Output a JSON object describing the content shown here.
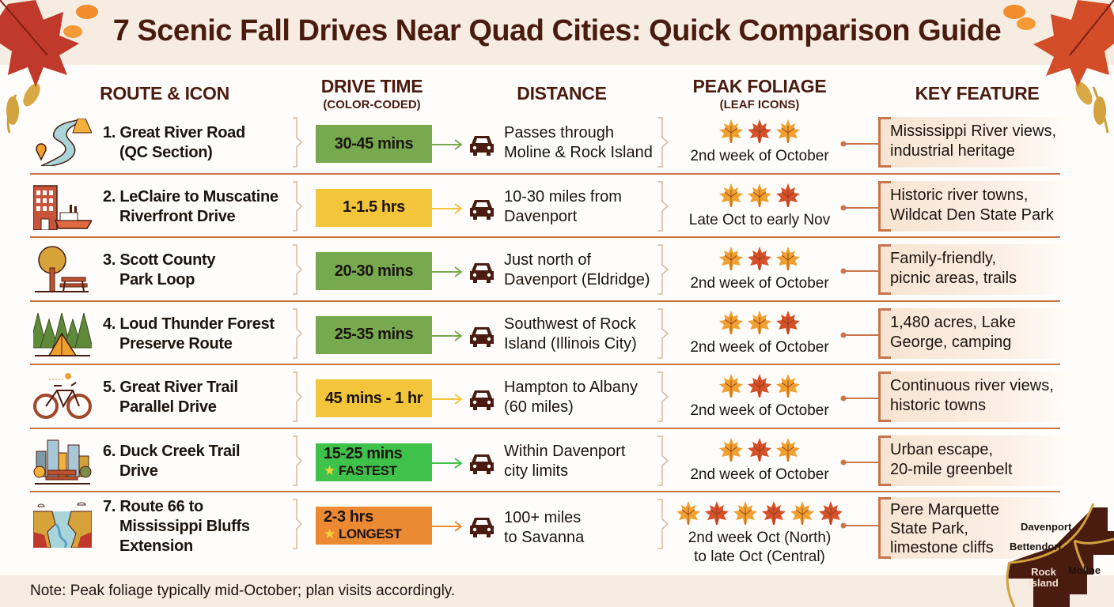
{
  "title": "7 Scenic Fall Drives Near Quad Cities: Quick Comparison Guide",
  "columns": {
    "route": {
      "main": "ROUTE & ICON",
      "sub": ""
    },
    "drive_time": {
      "main": "DRIVE TIME",
      "sub": "(COLOR-CODED)"
    },
    "distance": {
      "main": "DISTANCE",
      "sub": ""
    },
    "peak_foliage": {
      "main": "PEAK FOLIAGE",
      "sub": "(LEAF ICONS)"
    },
    "key_feature": {
      "main": "KEY FEATURE",
      "sub": ""
    }
  },
  "colors": {
    "title": "#4a1c10",
    "divider": "#c8754a",
    "band": "#f6ece2",
    "time_green": "#77a94f",
    "time_yellow": "#f2c53a",
    "time_bright_green": "#3fc24a",
    "time_orange": "#ec8a34",
    "car": "#4a1c10",
    "leaf_orange": "#f0a030",
    "leaf_red": "#d6502a"
  },
  "routes": [
    {
      "name": "1. Great River Road\n    (QC Section)",
      "icon": "winding-road-icon",
      "drive_time": "30-45 mins",
      "time_color": "#77a94f",
      "tag": "",
      "distance": "Passes through\nMoline & Rock Island",
      "leaves": [
        "orange",
        "red",
        "orange"
      ],
      "peak_foliage": "2nd week of October",
      "key_feature": "Mississippi River views,\nindustrial heritage"
    },
    {
      "name": "2. LeClaire to Muscatine\n    Riverfront Drive",
      "icon": "riverboat-town-icon",
      "drive_time": "1-1.5 hrs",
      "time_color": "#f2c53a",
      "tag": "",
      "distance": "10-30 miles from\nDavenport",
      "leaves": [
        "orange",
        "orange",
        "red"
      ],
      "peak_foliage": "Late Oct to early Nov",
      "key_feature": "Historic river towns,\nWildcat Den State Park"
    },
    {
      "name": "3. Scott County\n    Park Loop",
      "icon": "tree-picnic-icon",
      "drive_time": "20-30 mins",
      "time_color": "#77a94f",
      "tag": "",
      "distance": "Just north of\nDavenport (Eldridge)",
      "leaves": [
        "orange",
        "red",
        "orange"
      ],
      "peak_foliage": "2nd week of October",
      "key_feature": "Family-friendly,\npicnic areas, trails"
    },
    {
      "name": "4. Loud Thunder Forest\n    Preserve Route",
      "icon": "forest-tent-icon",
      "drive_time": "25-35 mins",
      "time_color": "#77a94f",
      "tag": "",
      "distance": "Southwest of Rock\nIsland (Illinois City)",
      "leaves": [
        "orange",
        "orange",
        "red"
      ],
      "peak_foliage": "2nd week of October",
      "key_feature": "1,480 acres, Lake\nGeorge, camping"
    },
    {
      "name": "5. Great River Trail\n    Parallel Drive",
      "icon": "bicycle-icon",
      "drive_time": "45 mins - 1 hr",
      "time_color": "#f2c53a",
      "tag": "",
      "distance": "Hampton to Albany\n(60 miles)",
      "leaves": [
        "orange",
        "red",
        "orange"
      ],
      "peak_foliage": "2nd week of October",
      "key_feature": "Continuous river views,\nhistoric towns"
    },
    {
      "name": "6. Duck Creek Trail\n    Drive",
      "icon": "city-park-icon",
      "drive_time": "15-25 mins",
      "time_color": "#3fc24a",
      "tag": "FASTEST",
      "distance": "Within Davenport\ncity limits",
      "leaves": [
        "orange",
        "red",
        "orange"
      ],
      "peak_foliage": "2nd week of October",
      "key_feature": "Urban escape,\n20-mile greenbelt"
    },
    {
      "name": "7. Route 66 to\n    Mississippi Bluffs\n    Extension",
      "icon": "canyon-river-icon",
      "drive_time": "2-3 hrs",
      "time_color": "#ec8a34",
      "tag": "LONGEST",
      "distance": "100+ miles\nto Savanna",
      "leaves": [
        "orange",
        "red",
        "orange",
        "red",
        "orange",
        "red"
      ],
      "peak_foliage": "2nd week Oct (North)\nto late Oct (Central)",
      "key_feature": "Pere Marquette\nState Park,\nlimestone cliffs"
    }
  ],
  "note": "Note: Peak foliage typically mid-October; plan visits accordingly.",
  "map": {
    "labels": [
      "Davenport",
      "Bettendorf",
      "Rock Island",
      "Moline"
    ]
  }
}
